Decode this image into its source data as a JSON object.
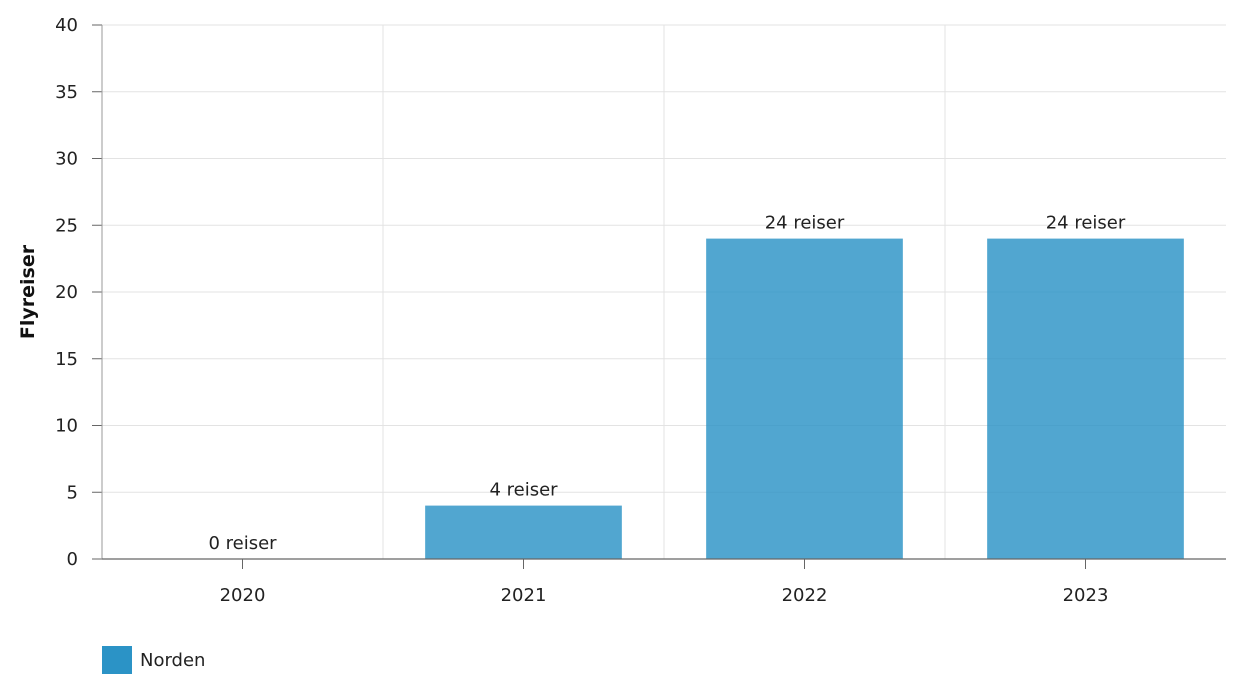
{
  "chart_data": {
    "type": "bar",
    "categories": [
      "2020",
      "2021",
      "2022",
      "2023"
    ],
    "series": [
      {
        "name": "Norden",
        "values": [
          0,
          4,
          24,
          24
        ],
        "color": "#2b93c6"
      }
    ],
    "data_labels": [
      "0 reiser",
      "4 reiser",
      "24 reiser",
      "24 reiser"
    ],
    "ylabel": "Flyreiser",
    "xlabel": "",
    "ylim": [
      0,
      40
    ],
    "yticks": [
      0,
      5,
      10,
      15,
      20,
      25,
      30,
      35,
      40
    ],
    "grid": true,
    "legend_position": "bottom-left"
  }
}
